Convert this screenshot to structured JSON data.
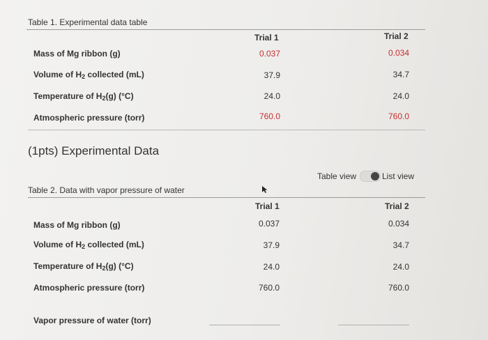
{
  "table1": {
    "caption": "Table 1. Experimental data table",
    "headers": [
      "Trial 1",
      "Trial 2"
    ],
    "rows": [
      {
        "label_pre": "Mass of Mg ribbon (g)",
        "label_sub": "",
        "label_post": "",
        "t1": "0.037",
        "t2": "0.034"
      },
      {
        "label_pre": "Volume of H",
        "label_sub": "2",
        "label_post": " collected (mL)",
        "t1": "37.9",
        "t2": "34.7"
      },
      {
        "label_pre": "Temperature of H",
        "label_sub": "2",
        "label_post": "(g) (°C)",
        "t1": "24.0",
        "t2": "24.0"
      },
      {
        "label_pre": "Atmospheric pressure (torr)",
        "label_sub": "",
        "label_post": "",
        "t1": "760.0",
        "t2": "760.0"
      }
    ]
  },
  "section": {
    "title": "(1pts) Experimental Data"
  },
  "view_toggle": {
    "left_label": "Table view",
    "right_label": "List view"
  },
  "table2": {
    "caption": "Table 2. Data with vapor pressure of water",
    "headers": [
      "Trial 1",
      "Trial 2"
    ],
    "rows": [
      {
        "label_pre": "Mass of Mg ribbon (g)",
        "label_sub": "",
        "label_post": "",
        "t1": "0.037",
        "t2": "0.034"
      },
      {
        "label_pre": "Volume of H",
        "label_sub": "2",
        "label_post": " collected (mL)",
        "t1": "37.9",
        "t2": "34.7"
      },
      {
        "label_pre": "Temperature of H",
        "label_sub": "2",
        "label_post": "(g) (°C)",
        "t1": "24.0",
        "t2": "24.0"
      },
      {
        "label_pre": "Atmospheric pressure (torr)",
        "label_sub": "",
        "label_post": "",
        "t1": "760.0",
        "t2": "760.0"
      }
    ],
    "input_row": {
      "label": "Vapor pressure of water (torr)",
      "t1": "",
      "t2": ""
    }
  },
  "colors": {
    "accent_red": "#c62f2f",
    "text": "#333333"
  }
}
